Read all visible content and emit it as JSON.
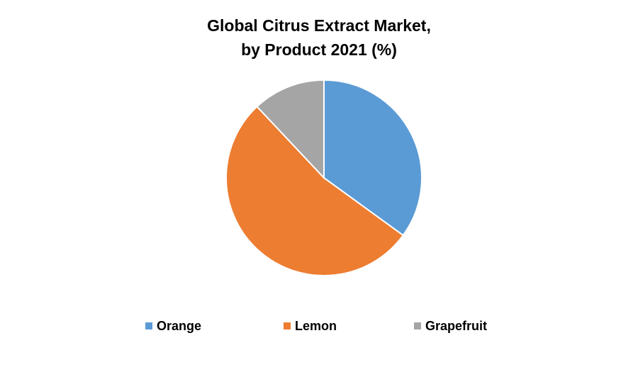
{
  "chart_data": {
    "type": "pie",
    "title": [
      "Global Citrus Extract Market,",
      "by Product 2021 (%)"
    ],
    "categories": [
      "Orange",
      "Lemon",
      "Grapefruit"
    ],
    "values": [
      35,
      53,
      12
    ],
    "colors": [
      "#5b9bd5",
      "#ed7d31",
      "#a5a5a5"
    ],
    "legend": "bottom"
  }
}
